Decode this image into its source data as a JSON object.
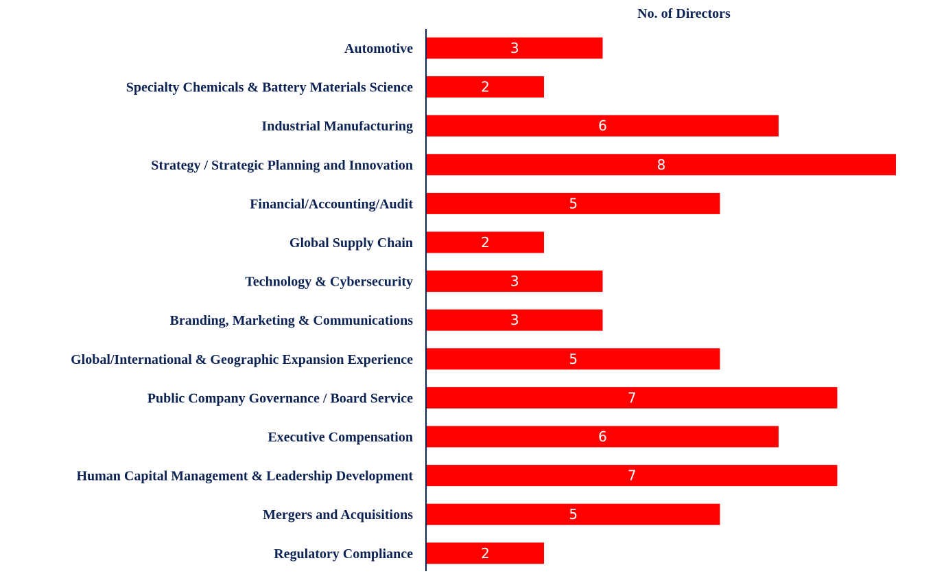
{
  "chart_data": {
    "type": "bar",
    "orientation": "horizontal",
    "title": "No. of Directors",
    "categories": [
      "Automotive",
      "Specialty Chemicals & Battery Materials Science",
      "Industrial Manufacturing",
      "Strategy / Strategic Planning and Innovation",
      "Financial/Accounting/Audit",
      "Global Supply Chain",
      "Technology & Cybersecurity",
      "Branding, Marketing & Communications",
      "Global/International & Geographic Expansion Experience",
      "Public Company Governance / Board Service",
      "Executive Compensation",
      "Human Capital Management & Leadership Development",
      "Mergers and Acquisitions",
      "Regulatory Compliance"
    ],
    "values": [
      3,
      2,
      6,
      8,
      5,
      2,
      3,
      3,
      5,
      7,
      6,
      7,
      5,
      2
    ],
    "xlim": [
      0,
      8
    ],
    "grid": false,
    "data_labels": true,
    "bar_color": "#ff0000",
    "label_color": "#0d2353",
    "axis_color": "#0d2353"
  }
}
